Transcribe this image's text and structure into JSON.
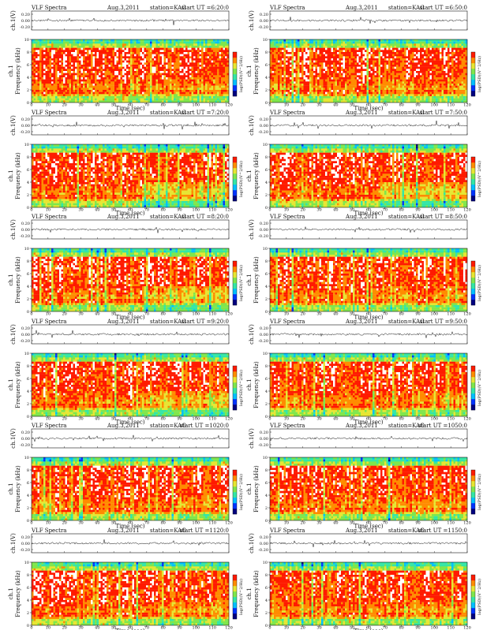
{
  "page_title": "VLF Spectra",
  "chart_data": [
    {
      "type": "heatmap",
      "title": "VLF Spectra",
      "date": "Aug.3,2011",
      "station": "station=KAG",
      "start": "start UT =6:20:0",
      "trace_ylabel": "ch.1(V)",
      "trace_yticks": [
        0.2,
        0.0,
        -0.2
      ],
      "ylabel": "Frequency (kHz)",
      "ylabel_prefix": "ch.1",
      "yticks": [
        0,
        2,
        4,
        6,
        8,
        10
      ],
      "ylim": [
        0,
        10
      ],
      "xlabel": "Time (sec)",
      "xticks": [
        0,
        10,
        20,
        30,
        40,
        50,
        60,
        70,
        80,
        90,
        100,
        110,
        120
      ],
      "xlim": [
        0,
        120
      ],
      "colorbar_label": "log(PSD)(V^2/Hz)"
    },
    {
      "type": "heatmap",
      "title": "VLF Spectra",
      "date": "Aug.3,2011",
      "station": "station=KAG",
      "start": "start UT =6:50:0",
      "trace_ylabel": "ch.1(V)",
      "trace_yticks": [
        0.2,
        0.0,
        -0.2
      ],
      "ylabel": "Frequency (kHz)",
      "ylabel_prefix": "ch.1",
      "yticks": [
        0,
        2,
        4,
        6,
        8,
        10
      ],
      "ylim": [
        0,
        10
      ],
      "xlabel": "Time (sec)",
      "xticks": [
        0,
        10,
        20,
        30,
        40,
        50,
        60,
        70,
        80,
        90,
        100,
        110,
        120
      ],
      "xlim": [
        0,
        120
      ],
      "colorbar_label": "log(PSD)(V^2/Hz)"
    },
    {
      "type": "heatmap",
      "title": "VLF Spectra",
      "date": "Aug.3,2011",
      "station": "station=KAG",
      "start": "start UT =7:20:0",
      "trace_ylabel": "ch.1(V)",
      "trace_yticks": [
        0.2,
        0.0,
        -0.2
      ],
      "ylabel": "Frequency (kHz)",
      "ylabel_prefix": "ch.1",
      "yticks": [
        0,
        2,
        4,
        6,
        8,
        10
      ],
      "ylim": [
        0,
        10
      ],
      "xlabel": "Time (sec)",
      "xticks": [
        0,
        10,
        20,
        30,
        40,
        50,
        60,
        70,
        80,
        90,
        100,
        110,
        120
      ],
      "xlim": [
        0,
        120
      ],
      "colorbar_label": "log(PSD)(V^2/Hz)"
    },
    {
      "type": "heatmap",
      "title": "VLF Spectra",
      "date": "Aug.3,2011",
      "station": "station=KAG",
      "start": "start UT =7:50:0",
      "trace_ylabel": "ch.1(V)",
      "trace_yticks": [
        0.2,
        0.0,
        -0.2
      ],
      "ylabel": "Frequency (kHz)",
      "ylabel_prefix": "ch.1",
      "yticks": [
        0,
        2,
        4,
        6,
        8,
        10
      ],
      "ylim": [
        0,
        10
      ],
      "xlabel": "Time (sec)",
      "xticks": [
        0,
        10,
        20,
        30,
        40,
        50,
        60,
        70,
        80,
        90,
        100,
        110,
        120
      ],
      "xlim": [
        0,
        120
      ],
      "colorbar_label": "log(PSD)(V^2/Hz)"
    },
    {
      "type": "heatmap",
      "title": "VLF Spectra",
      "date": "Aug.3,2011",
      "station": "station=KAG",
      "start": "start UT =8:20:0",
      "trace_ylabel": "ch.1(V)",
      "trace_yticks": [
        0.2,
        0.0,
        -0.2
      ],
      "ylabel": "Frequency (kHz)",
      "ylabel_prefix": "ch.1",
      "yticks": [
        0,
        2,
        4,
        6,
        8,
        10
      ],
      "ylim": [
        0,
        10
      ],
      "xlabel": "Time (sec)",
      "xticks": [
        0,
        10,
        20,
        30,
        40,
        50,
        60,
        70,
        80,
        90,
        100,
        110,
        120
      ],
      "xlim": [
        0,
        120
      ],
      "colorbar_label": "log(PSD)(V^2/Hz)"
    },
    {
      "type": "heatmap",
      "title": "VLF Spectra",
      "date": "Aug.3,2011",
      "station": "station=KAG",
      "start": "start UT =8:50:0",
      "trace_ylabel": "ch.1(V)",
      "trace_yticks": [
        0.2,
        0.0,
        -0.2
      ],
      "ylabel": "Frequency (kHz)",
      "ylabel_prefix": "ch.1",
      "yticks": [
        0,
        2,
        4,
        6,
        8,
        10
      ],
      "ylim": [
        0,
        10
      ],
      "xlabel": "Time (sec)",
      "xticks": [
        0,
        10,
        20,
        30,
        40,
        50,
        60,
        70,
        80,
        90,
        100,
        110,
        120
      ],
      "xlim": [
        0,
        120
      ],
      "colorbar_label": "log(PSD)(V^2/Hz)"
    },
    {
      "type": "heatmap",
      "title": "VLF Spectra",
      "date": "Aug.3,2011",
      "station": "station=KAG",
      "start": "start UT =9:20:0",
      "trace_ylabel": "ch.1(V)",
      "trace_yticks": [
        0.2,
        0.0,
        -0.2
      ],
      "ylabel": "Frequency (kHz)",
      "ylabel_prefix": "ch.1",
      "yticks": [
        0,
        2,
        4,
        6,
        8,
        10
      ],
      "ylim": [
        0,
        10
      ],
      "xlabel": "Time (sec)",
      "xticks": [
        0,
        10,
        20,
        30,
        40,
        50,
        60,
        70,
        80,
        90,
        100,
        110,
        120
      ],
      "xlim": [
        0,
        120
      ],
      "colorbar_label": "log(PSD)(V^2/Hz)"
    },
    {
      "type": "heatmap",
      "title": "VLF Spectra",
      "date": "Aug.3,2011",
      "station": "station=KAG",
      "start": "start UT =9:50:0",
      "trace_ylabel": "ch.1(V)",
      "trace_yticks": [
        0.2,
        0.0,
        -0.2
      ],
      "ylabel": "Frequency (kHz)",
      "ylabel_prefix": "ch.1",
      "yticks": [
        0,
        2,
        4,
        6,
        8,
        10
      ],
      "ylim": [
        0,
        10
      ],
      "xlabel": "Time (sec)",
      "xticks": [
        0,
        10,
        20,
        30,
        40,
        50,
        60,
        70,
        80,
        90,
        100,
        110,
        120
      ],
      "xlim": [
        0,
        120
      ],
      "colorbar_label": "log(PSD)(V^2/Hz)"
    },
    {
      "type": "heatmap",
      "title": "VLF Spectra",
      "date": "Aug.3,2011",
      "station": "station=KAG",
      "start": "start UT =1020:0",
      "trace_ylabel": "ch.1(V)",
      "trace_yticks": [
        0.2,
        0.0,
        -0.2
      ],
      "ylabel": "Frequency (kHz)",
      "ylabel_prefix": "ch.1",
      "yticks": [
        0,
        2,
        4,
        6,
        8,
        10
      ],
      "ylim": [
        0,
        10
      ],
      "xlabel": "Time (sec)",
      "xticks": [
        0,
        10,
        20,
        30,
        40,
        50,
        60,
        70,
        80,
        90,
        100,
        110,
        120
      ],
      "xlim": [
        0,
        120
      ],
      "colorbar_label": "log(PSD)(V^2/Hz)"
    },
    {
      "type": "heatmap",
      "title": "VLF Spectra",
      "date": "Aug.3,2011",
      "station": "station=KAG",
      "start": "start UT =1050:0",
      "trace_ylabel": "ch.1(V)",
      "trace_yticks": [
        0.2,
        0.0,
        -0.2
      ],
      "ylabel": "Frequency (kHz)",
      "ylabel_prefix": "ch.1",
      "yticks": [
        0,
        2,
        4,
        6,
        8,
        10
      ],
      "ylim": [
        0,
        10
      ],
      "xlabel": "Time (sec)",
      "xticks": [
        0,
        10,
        20,
        30,
        40,
        50,
        60,
        70,
        80,
        90,
        100,
        110,
        120
      ],
      "xlim": [
        0,
        120
      ],
      "colorbar_label": "log(PSD)(V^2/Hz)"
    },
    {
      "type": "heatmap",
      "title": "VLF Spectra",
      "date": "Aug.3,2011",
      "station": "station=KAG",
      "start": "start UT =1120:0",
      "trace_ylabel": "ch.1(V)",
      "trace_yticks": [
        0.2,
        0.0,
        -0.2
      ],
      "ylabel": "Frequency (kHz)",
      "ylabel_prefix": "ch.1",
      "yticks": [
        0,
        2,
        4,
        6,
        8,
        10
      ],
      "ylim": [
        0,
        10
      ],
      "xlabel": "Time (sec)",
      "xticks": [
        0,
        10,
        20,
        30,
        40,
        50,
        60,
        70,
        80,
        90,
        100,
        110,
        120
      ],
      "xlim": [
        0,
        120
      ],
      "colorbar_label": "log(PSD)(V^2/Hz)"
    },
    {
      "type": "heatmap",
      "title": "VLF Spectra",
      "date": "Aug.3,2011",
      "station": "station=KAG",
      "start": "start UT =1150:0",
      "trace_ylabel": "ch.1(V)",
      "trace_yticks": [
        0.2,
        0.0,
        -0.2
      ],
      "ylabel": "Frequency (kHz)",
      "ylabel_prefix": "ch.1",
      "yticks": [
        0,
        2,
        4,
        6,
        8,
        10
      ],
      "ylim": [
        0,
        10
      ],
      "xlabel": "Time (sec)",
      "xticks": [
        0,
        10,
        20,
        30,
        40,
        50,
        60,
        70,
        80,
        90,
        100,
        110,
        120
      ],
      "xlim": [
        0,
        120
      ],
      "colorbar_label": "log(PSD)(V^2/Hz)"
    }
  ],
  "colors": {
    "bg": "#ffffff",
    "axis": "#111111",
    "trace": "#111111",
    "cmap": [
      "#00007f",
      "#0033ff",
      "#00bfff",
      "#33e6a6",
      "#7fe64c",
      "#e6e633",
      "#ff8c00",
      "#ff1a00",
      "#ffffff"
    ]
  }
}
